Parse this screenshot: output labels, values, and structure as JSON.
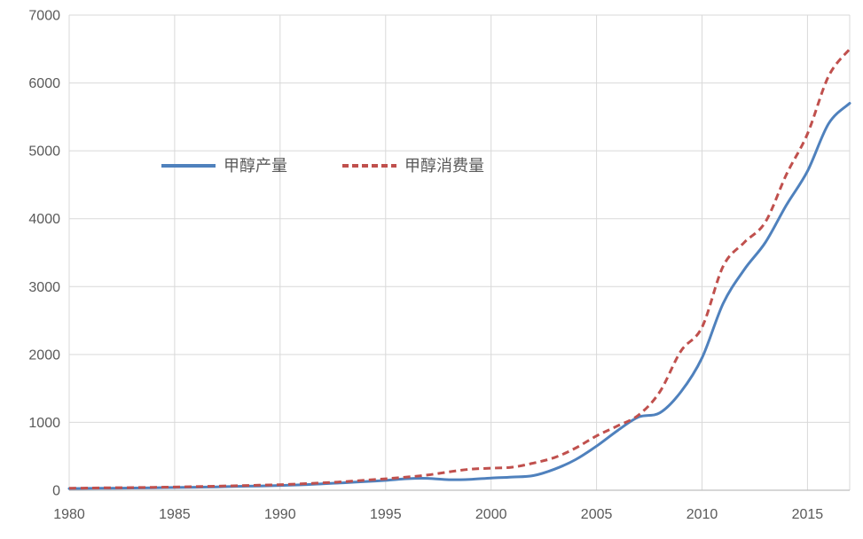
{
  "style": {
    "series_blue": "#4F81BD",
    "series_red": "#C0504D",
    "grid_color": "#D9D9D9",
    "axis_color": "#BFBFBF",
    "text_color": "#595959",
    "background": "#FFFFFF"
  },
  "chart_data": {
    "type": "line",
    "title": "",
    "xlabel": "",
    "ylabel": "",
    "xlim": [
      1980,
      2017
    ],
    "ylim": [
      0,
      7000
    ],
    "x_ticks": [
      1980,
      1985,
      1990,
      1995,
      2000,
      2005,
      2010,
      2015
    ],
    "y_ticks": [
      0,
      1000,
      2000,
      3000,
      4000,
      5000,
      6000,
      7000
    ],
    "grid": true,
    "legend_position": "inside-upper-left",
    "x": [
      1980,
      1981,
      1982,
      1983,
      1984,
      1985,
      1986,
      1987,
      1988,
      1989,
      1990,
      1991,
      1992,
      1993,
      1994,
      1995,
      1996,
      1997,
      1998,
      1999,
      2000,
      2001,
      2002,
      2003,
      2004,
      2005,
      2006,
      2007,
      2008,
      2009,
      2010,
      2011,
      2012,
      2013,
      2014,
      2015,
      2016,
      2017
    ],
    "series": [
      {
        "name": "甲醇产量",
        "color": "#4F81BD",
        "line_style": "solid",
        "values": [
          25,
          28,
          30,
          33,
          36,
          40,
          45,
          50,
          57,
          63,
          70,
          80,
          95,
          110,
          128,
          145,
          170,
          175,
          155,
          160,
          180,
          195,
          215,
          310,
          450,
          650,
          880,
          1080,
          1140,
          1450,
          1950,
          2750,
          3250,
          3650,
          4200,
          4700,
          5400,
          5700
        ]
      },
      {
        "name": "甲醇消费量",
        "color": "#C0504D",
        "line_style": "dashed",
        "values": [
          30,
          33,
          36,
          39,
          43,
          47,
          53,
          60,
          67,
          74,
          82,
          94,
          108,
          125,
          148,
          168,
          195,
          225,
          270,
          310,
          325,
          340,
          400,
          480,
          620,
          800,
          950,
          1110,
          1450,
          2050,
          2400,
          3300,
          3650,
          3950,
          4650,
          5250,
          6100,
          6500
        ]
      }
    ]
  }
}
